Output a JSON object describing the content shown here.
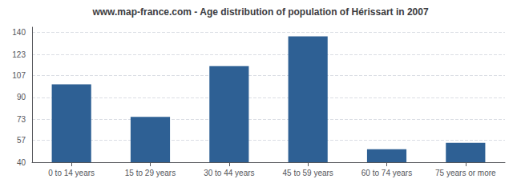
{
  "chart_data": {
    "type": "bar",
    "title": "www.map-france.com - Age distribution of population of Hérissart in 2007",
    "categories": [
      "0 to 14 years",
      "15 to 29 years",
      "30 to 44 years",
      "45 to 59 years",
      "60 to 74 years",
      "75 years or more"
    ],
    "values": [
      100,
      75,
      114,
      137,
      50,
      55
    ],
    "color": "#2e6094",
    "ylim": [
      40,
      144
    ],
    "yticks": [
      40,
      57,
      73,
      90,
      107,
      123,
      140
    ],
    "grid": true
  }
}
